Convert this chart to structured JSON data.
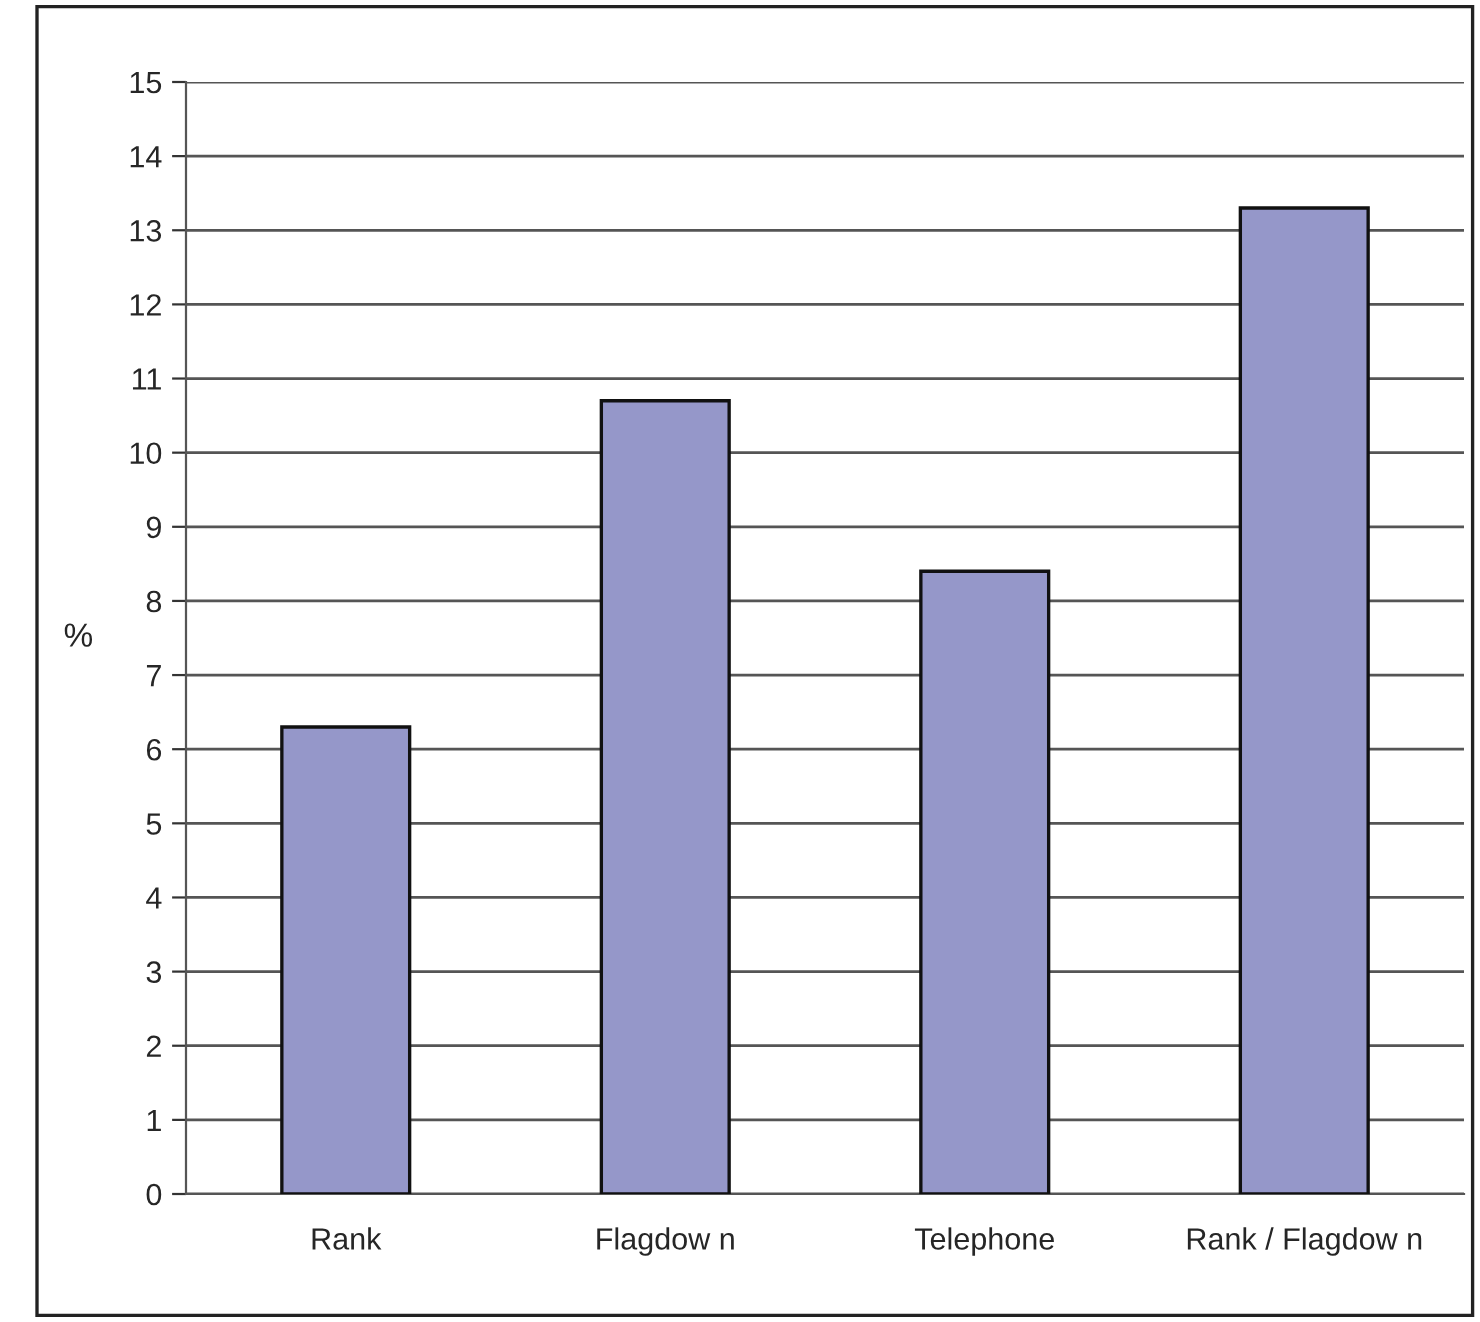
{
  "chart_data": {
    "type": "bar",
    "ylabel": "%",
    "categories": [
      "Rank",
      "Flagdow n",
      "Telephone",
      "Rank / Flagdow n"
    ],
    "values": [
      6.3,
      10.7,
      8.4,
      13.3
    ],
    "color": "#9597c9",
    "ylim": [
      0,
      15
    ],
    "yticks": [
      0,
      1,
      2,
      3,
      4,
      5,
      6,
      7,
      8,
      9,
      10,
      11,
      12,
      13,
      14,
      15
    ],
    "grid": "y"
  }
}
